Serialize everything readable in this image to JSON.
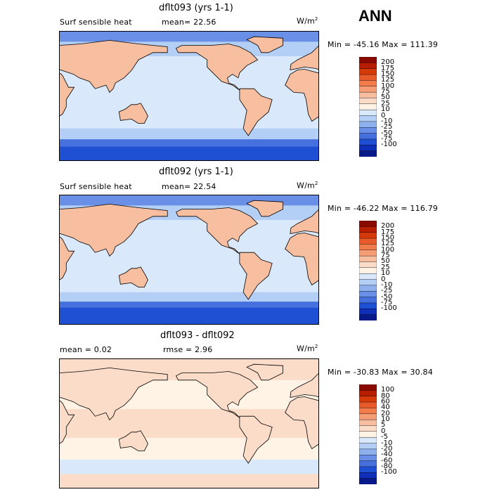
{
  "corner_label": "ANN",
  "panels": [
    {
      "title": "dflt093 (yrs 1-1)",
      "left_label": "Surf sensible heat",
      "center_label": "mean=  22.56",
      "units": "W/m",
      "units_exp": "2",
      "minmax": "Min = -45.16  Max = 111.39",
      "levels": [
        "200",
        "175",
        "150",
        "125",
        "100",
        "75",
        "50",
        "25",
        "10",
        "0",
        "-10",
        "-25",
        "-50",
        "-75",
        "-100"
      ],
      "colors": [
        "#8a0a00",
        "#b81d00",
        "#d63a0a",
        "#e95a2a",
        "#f27c4c",
        "#f59e76",
        "#f8bea0",
        "#fbdcc8",
        "#fff3e6",
        "#d9e8fa",
        "#b4cff5",
        "#8eb1ee",
        "#6a8fe6",
        "#4570dd",
        "#1f4fd3",
        "#0f2fb8",
        "#081a8a"
      ],
      "bands": [
        {
          "lat": 90,
          "c": "#6a8fe6"
        },
        {
          "lat": 75,
          "c": "#b4cff5"
        },
        {
          "lat": 55,
          "c": "#d9e8fa"
        },
        {
          "lat": -45,
          "c": "#b4cff5"
        },
        {
          "lat": -60,
          "c": "#4570dd"
        },
        {
          "lat": -70,
          "c": "#1f4fd3"
        }
      ]
    },
    {
      "title": "dflt092 (yrs 1-1)",
      "left_label": "Surf sensible heat",
      "center_label": "mean=  22.54",
      "units": "W/m",
      "units_exp": "2",
      "minmax": "Min = -46.22  Max = 116.79",
      "levels": [
        "200",
        "175",
        "150",
        "125",
        "100",
        "75",
        "50",
        "25",
        "10",
        "0",
        "-10",
        "-25",
        "-50",
        "-75",
        "-100"
      ],
      "colors": [
        "#8a0a00",
        "#b81d00",
        "#d63a0a",
        "#e95a2a",
        "#f27c4c",
        "#f59e76",
        "#f8bea0",
        "#fbdcc8",
        "#fff3e6",
        "#d9e8fa",
        "#b4cff5",
        "#8eb1ee",
        "#6a8fe6",
        "#4570dd",
        "#1f4fd3",
        "#0f2fb8",
        "#081a8a"
      ],
      "bands": [
        {
          "lat": 90,
          "c": "#6a8fe6"
        },
        {
          "lat": 75,
          "c": "#b4cff5"
        },
        {
          "lat": 55,
          "c": "#d9e8fa"
        },
        {
          "lat": -45,
          "c": "#b4cff5"
        },
        {
          "lat": -58,
          "c": "#4570dd"
        },
        {
          "lat": -66,
          "c": "#1f4fd3"
        }
      ]
    },
    {
      "title": "dflt093 - dflt092",
      "left_label": "mean =   0.02",
      "center_label": "rmse =   2.96",
      "units": "W/m",
      "units_exp": "2",
      "minmax": "Min = -30.83  Max =  30.84",
      "levels": [
        "100",
        "80",
        "60",
        "40",
        "20",
        "10",
        "5",
        "0",
        "-5",
        "-10",
        "-20",
        "-40",
        "-60",
        "-80",
        "-100"
      ],
      "colors": [
        "#8a0a00",
        "#b81d00",
        "#d63a0a",
        "#e95a2a",
        "#f27c4c",
        "#f59e76",
        "#f8bea0",
        "#fbdcc8",
        "#fff3e6",
        "#d9e8fa",
        "#b4cff5",
        "#8eb1ee",
        "#6a8fe6",
        "#4570dd",
        "#1f4fd3",
        "#0f2fb8",
        "#081a8a"
      ],
      "bands": [
        {
          "lat": 90,
          "c": "#fbdcc8"
        },
        {
          "lat": 60,
          "c": "#fff3e6"
        },
        {
          "lat": 20,
          "c": "#fbdcc8"
        },
        {
          "lat": -20,
          "c": "#fff3e6"
        },
        {
          "lat": -50,
          "c": "#d9e8fa"
        },
        {
          "lat": -70,
          "c": "#fbdcc8"
        }
      ]
    }
  ]
}
